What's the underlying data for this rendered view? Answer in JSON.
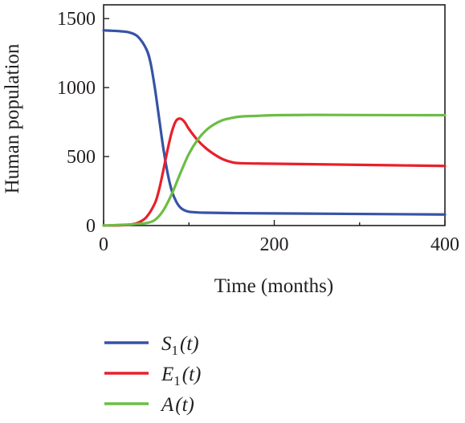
{
  "chart_data": {
    "type": "line",
    "xlabel": "Time (months)",
    "ylabel": "Human population",
    "xlim": [
      0,
      400
    ],
    "ylim": [
      0,
      1600
    ],
    "xticks": [
      0,
      200,
      400
    ],
    "yticks": [
      0,
      500,
      1000,
      1500
    ],
    "grid": false,
    "legend_position": "bottom",
    "series": [
      {
        "name": "S1(t)",
        "legend": {
          "base": "S",
          "sub": "1",
          "arg": "(t)"
        },
        "color": "#3653a5",
        "x": [
          0,
          10,
          20,
          30,
          40,
          50,
          55,
          60,
          65,
          70,
          75,
          80,
          85,
          90,
          95,
          100,
          110,
          120,
          150,
          200,
          300,
          400
        ],
        "y": [
          1415,
          1412,
          1408,
          1400,
          1370,
          1280,
          1180,
          1000,
          780,
          560,
          380,
          250,
          175,
          130,
          110,
          100,
          95,
          93,
          90,
          88,
          84,
          80
        ]
      },
      {
        "name": "E1(t)",
        "legend": {
          "base": "E",
          "sub": "1",
          "arg": "(t)"
        },
        "color": "#e8202a",
        "x": [
          0,
          20,
          30,
          40,
          50,
          60,
          65,
          70,
          75,
          80,
          85,
          90,
          95,
          100,
          110,
          120,
          130,
          140,
          150,
          160,
          200,
          300,
          400
        ],
        "y": [
          0,
          2,
          6,
          20,
          60,
          160,
          260,
          400,
          550,
          680,
          760,
          775,
          750,
          700,
          620,
          560,
          515,
          480,
          460,
          452,
          448,
          440,
          432
        ]
      },
      {
        "name": "A(t)",
        "legend": {
          "base": "A",
          "sub": "",
          "arg": "(t)"
        },
        "color": "#6cbd45",
        "x": [
          0,
          20,
          30,
          40,
          50,
          60,
          70,
          80,
          90,
          100,
          110,
          120,
          130,
          140,
          150,
          160,
          180,
          200,
          250,
          300,
          400
        ],
        "y": [
          0,
          5,
          8,
          12,
          18,
          40,
          110,
          230,
          380,
          520,
          620,
          690,
          735,
          765,
          780,
          790,
          795,
          800,
          802,
          801,
          800
        ]
      }
    ]
  }
}
